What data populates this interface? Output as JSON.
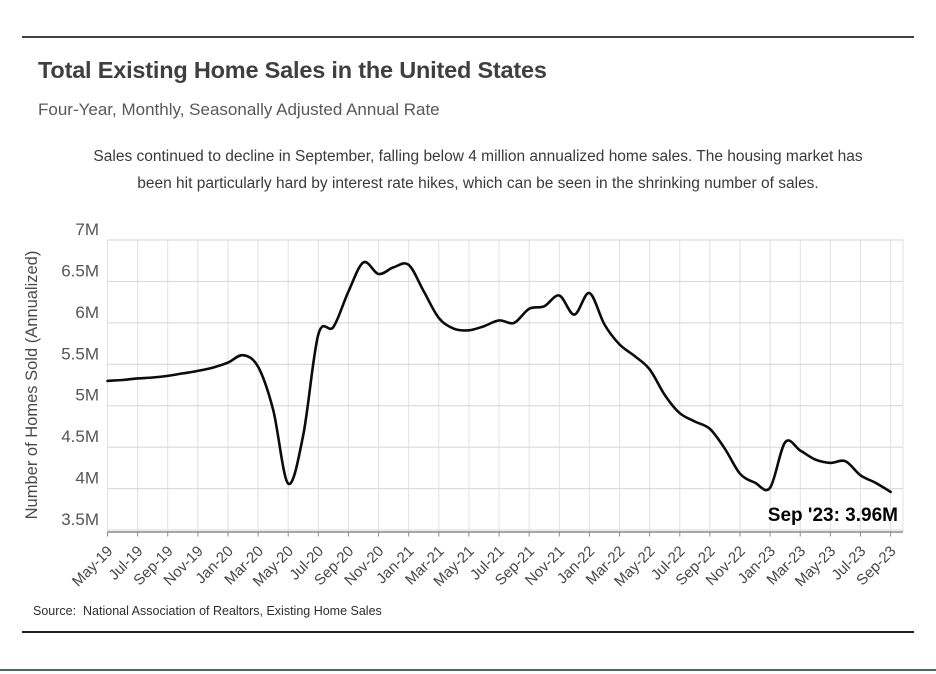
{
  "page": {
    "accent_bar_color": "#42705a",
    "rule_color": "#424242"
  },
  "chart_data": {
    "type": "line",
    "title": "Total Existing Home Sales in the United States",
    "subtitle": "Four-Year, Monthly, Seasonally Adjusted Annual Rate",
    "description_lines": [
      "Sales continued to decline in September, falling below 4 million annualized home sales. The housing market has",
      "been hit particularly hard by interest rate hikes, which can be seen in the shrinking number of sales."
    ],
    "ylabel": "Number of Homes Sold (Annualized)",
    "xlabel": "",
    "ylim": [
      3.5,
      7
    ],
    "grid": true,
    "legend": "none",
    "line_color": "#0c0c0c",
    "yticks": [
      7,
      6.5,
      6,
      5.5,
      5,
      4.5,
      4,
      3.5
    ],
    "ytick_labels": [
      "7M",
      "6.5M",
      "6M",
      "5.5M",
      "5M",
      "4.5M",
      "4M",
      "3.5M"
    ],
    "xtick_every": 2,
    "xtick_labels": [
      "May-19",
      "Jul-19",
      "Sep-19",
      "Nov-19",
      "Jan-20",
      "Mar-20",
      "May-20",
      "Jul-20",
      "Sep-20",
      "Nov-20",
      "Jan-21",
      "Mar-21",
      "May-21",
      "Jul-21",
      "Sep-21",
      "Nov-21",
      "Jan-22",
      "Mar-22",
      "May-22",
      "Jul-22",
      "Sep-22",
      "Nov-22",
      "Jan-23",
      "Mar-23",
      "May-23",
      "Jul-23",
      "Sep-23"
    ],
    "months": [
      "May-19",
      "Jun-19",
      "Jul-19",
      "Aug-19",
      "Sep-19",
      "Oct-19",
      "Nov-19",
      "Dec-19",
      "Jan-20",
      "Feb-20",
      "Mar-20",
      "Apr-20",
      "May-20",
      "Jun-20",
      "Jul-20",
      "Aug-20",
      "Sep-20",
      "Oct-20",
      "Nov-20",
      "Dec-20",
      "Jan-21",
      "Feb-21",
      "Mar-21",
      "Apr-21",
      "May-21",
      "Jun-21",
      "Jul-21",
      "Aug-21",
      "Sep-21",
      "Oct-21",
      "Nov-21",
      "Dec-21",
      "Jan-22",
      "Feb-22",
      "Mar-22",
      "Apr-22",
      "May-22",
      "Jun-22",
      "Jul-22",
      "Aug-22",
      "Sep-22",
      "Oct-22",
      "Nov-22",
      "Dec-22",
      "Jan-23",
      "Feb-23",
      "Mar-23",
      "Apr-23",
      "May-23",
      "Jun-23",
      "Jul-23",
      "Aug-23",
      "Sep-23"
    ],
    "values": [
      5.3,
      5.31,
      5.33,
      5.34,
      5.36,
      5.39,
      5.42,
      5.46,
      5.52,
      5.61,
      5.47,
      4.95,
      4.06,
      4.65,
      5.86,
      5.95,
      6.38,
      6.73,
      6.59,
      6.67,
      6.7,
      6.38,
      6.06,
      5.93,
      5.91,
      5.96,
      6.03,
      6.0,
      6.17,
      6.2,
      6.33,
      6.1,
      6.36,
      5.98,
      5.74,
      5.6,
      5.44,
      5.13,
      4.91,
      4.81,
      4.72,
      4.48,
      4.18,
      4.07,
      4.01,
      4.56,
      4.46,
      4.35,
      4.31,
      4.33,
      4.16,
      4.07,
      3.96
    ],
    "annotation": {
      "text": "Sep '23: 3.96M"
    },
    "source": "Source:  National Association of Realtors, Existing Home Sales"
  }
}
